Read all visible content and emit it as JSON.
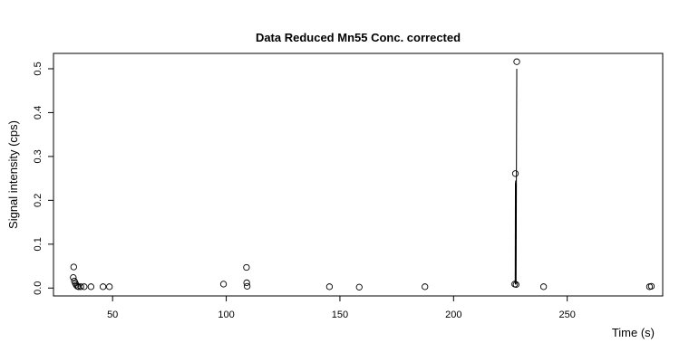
{
  "chart_data": {
    "type": "scatter",
    "title": "Data Reduced Mn55 Conc. corrected",
    "xlabel": "Time (s)",
    "ylabel": "Signal intensity (cps)",
    "xlim": [
      24,
      292
    ],
    "ylim": [
      -0.018,
      0.535
    ],
    "x_ticks": [
      {
        "value": 50,
        "label": "50"
      },
      {
        "value": 100,
        "label": "100"
      },
      {
        "value": 150,
        "label": "150"
      },
      {
        "value": 200,
        "label": "200"
      },
      {
        "value": 250,
        "label": "250"
      }
    ],
    "y_ticks": [
      {
        "value": 0.0,
        "label": "0.0"
      },
      {
        "value": 0.1,
        "label": "0.1"
      },
      {
        "value": 0.2,
        "label": "0.2"
      },
      {
        "value": 0.3,
        "label": "0.3"
      },
      {
        "value": 0.4,
        "label": "0.4"
      },
      {
        "value": 0.5,
        "label": "0.5"
      }
    ],
    "points": [
      {
        "x": 32.9,
        "y": 0.048
      },
      {
        "x": 32.7,
        "y": 0.024
      },
      {
        "x": 33.2,
        "y": 0.016
      },
      {
        "x": 33.6,
        "y": 0.011
      },
      {
        "x": 34.0,
        "y": 0.007
      },
      {
        "x": 34.5,
        "y": 0.004
      },
      {
        "x": 35.0,
        "y": 0.003
      },
      {
        "x": 36.0,
        "y": 0.003
      },
      {
        "x": 37.5,
        "y": 0.003
      },
      {
        "x": 40.5,
        "y": 0.003
      },
      {
        "x": 45.8,
        "y": 0.003
      },
      {
        "x": 48.6,
        "y": 0.003
      },
      {
        "x": 98.8,
        "y": 0.009
      },
      {
        "x": 108.9,
        "y": 0.047
      },
      {
        "x": 109.0,
        "y": 0.012
      },
      {
        "x": 109.2,
        "y": 0.004
      },
      {
        "x": 145.4,
        "y": 0.003
      },
      {
        "x": 158.5,
        "y": 0.002
      },
      {
        "x": 187.4,
        "y": 0.003
      },
      {
        "x": 226.9,
        "y": 0.009
      },
      {
        "x": 227.2,
        "y": 0.261
      },
      {
        "x": 227.5,
        "y": 0.008
      },
      {
        "x": 227.8,
        "y": 0.516
      },
      {
        "x": 239.6,
        "y": 0.003
      },
      {
        "x": 286.2,
        "y": 0.003
      },
      {
        "x": 287.0,
        "y": 0.004
      }
    ],
    "lines": [
      [
        {
          "x": 227.5,
          "y": 0.008
        },
        {
          "x": 227.8,
          "y": 0.5
        }
      ],
      [
        {
          "x": 227.2,
          "y": 0.008
        },
        {
          "x": 227.3,
          "y": 0.245
        }
      ],
      [
        {
          "x": 227.1,
          "y": 0.01
        },
        {
          "x": 227.2,
          "y": 0.24
        }
      ],
      [
        {
          "x": 227.35,
          "y": 0.01
        },
        {
          "x": 227.4,
          "y": 0.235
        }
      ]
    ]
  }
}
